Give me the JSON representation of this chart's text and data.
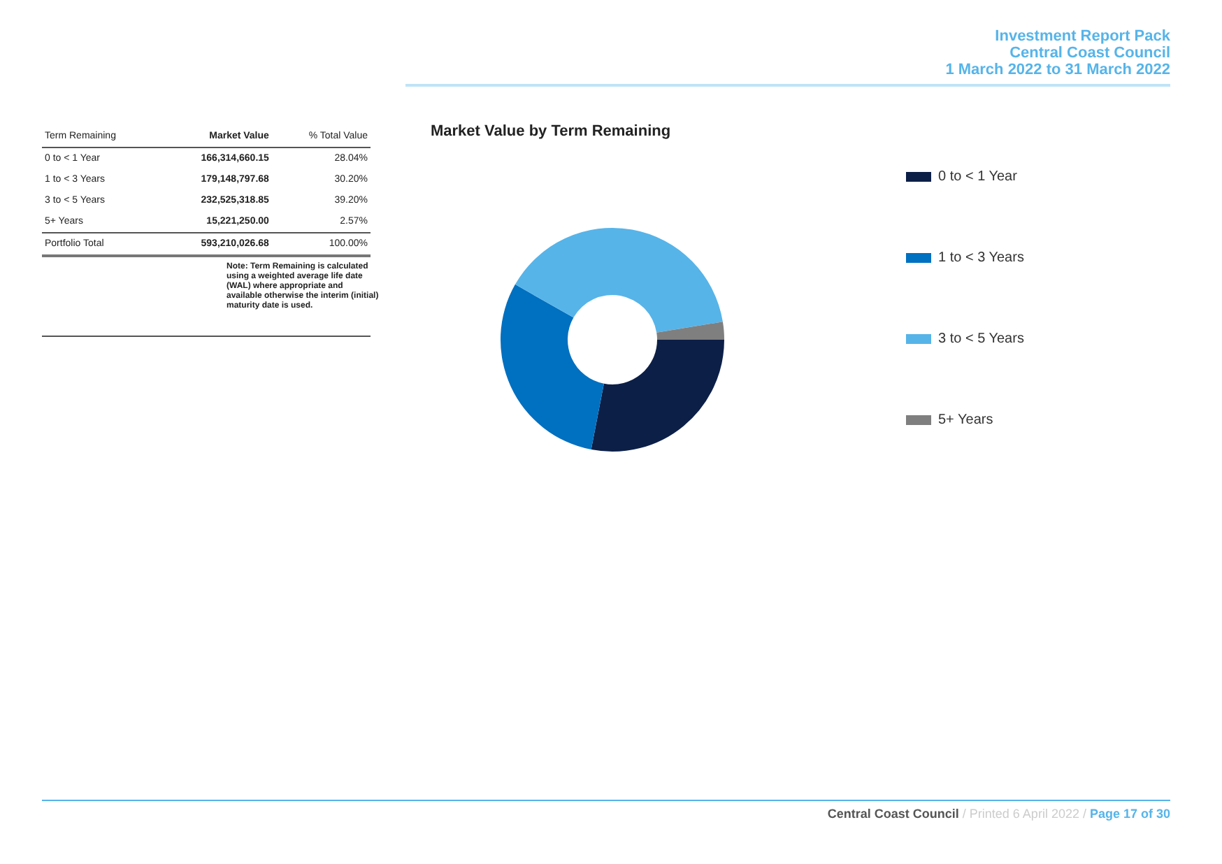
{
  "chart_data": {
    "type": "donut",
    "title": "Market Value by Term Remaining",
    "categories": [
      "0 to < 1 Year",
      "1 to < 3 Years",
      "3 to < 5 Years",
      "5+ Years"
    ],
    "values": [
      28.04,
      30.2,
      39.2,
      2.57
    ],
    "colors": [
      "#0c1f47",
      "#0070c0",
      "#56b4e9",
      "#7f7f7f"
    ],
    "legend": "right",
    "annotations": [
      "Investment Report Pack",
      "Central Coast Council",
      "1 March 2022 to 31 March 2022",
      "Term Remaining",
      "Market Value",
      "% Total Value",
      "166,314,660.15",
      "28.04%",
      "179,148,797.68",
      "30.20%",
      "232,525,318.85",
      "39.20%",
      "15,221,250.00",
      "2.57%",
      "Portfolio Total",
      "593,210,026.68",
      "100.00%",
      "Note: Term Remaining is calculated using a weighted average life date (WAL) where appropriate and available otherwise the interim (initial) maturity date is used.",
      "Central Coast Council",
      " / Printed 6 April 2022 / ",
      "Page 17 of 30"
    ]
  }
}
